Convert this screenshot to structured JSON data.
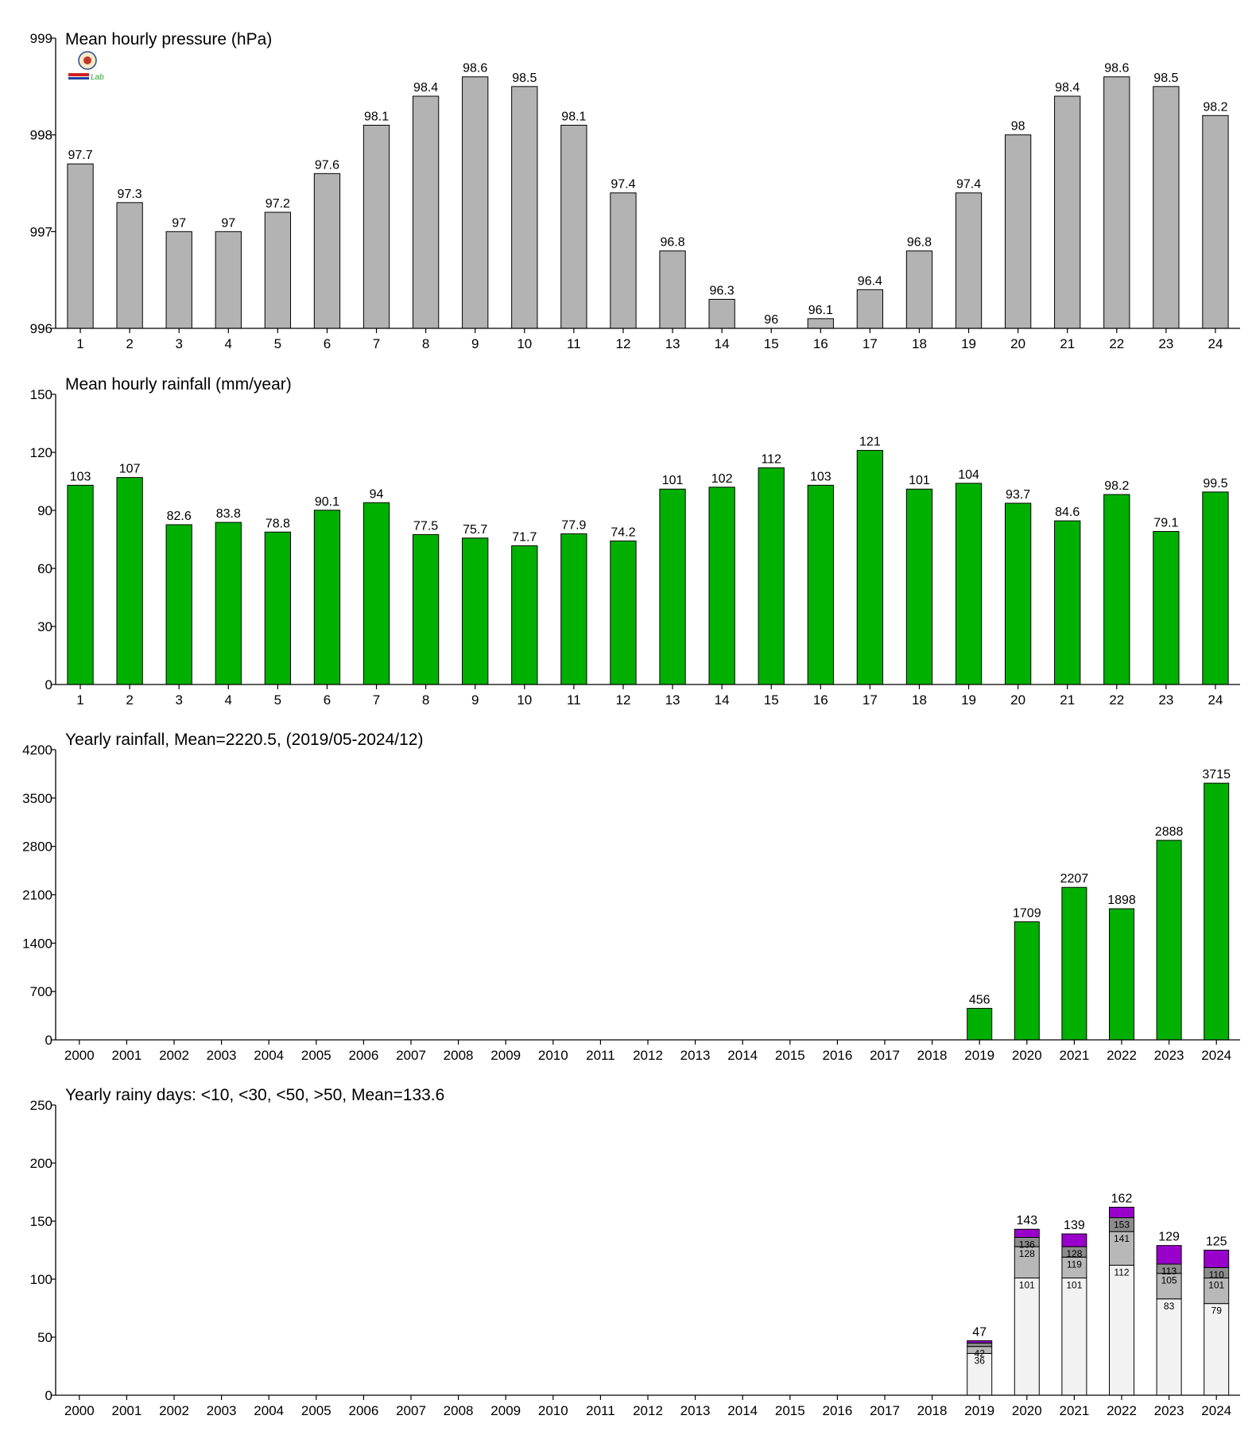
{
  "chart_data": [
    {
      "type": "bar",
      "title": "Mean hourly pressure (hPa)",
      "categories": [
        "1",
        "2",
        "3",
        "4",
        "5",
        "6",
        "7",
        "8",
        "9",
        "10",
        "11",
        "12",
        "13",
        "14",
        "15",
        "16",
        "17",
        "18",
        "19",
        "20",
        "21",
        "22",
        "23",
        "24"
      ],
      "values": [
        997.7,
        997.3,
        997.0,
        997.0,
        997.2,
        997.6,
        998.1,
        998.4,
        998.6,
        998.5,
        998.1,
        997.4,
        996.8,
        996.3,
        996.0,
        996.1,
        996.4,
        996.8,
        997.4,
        998.0,
        998.4,
        998.6,
        998.5,
        998.2
      ],
      "data_labels": [
        "97.7",
        "97.3",
        "97",
        "97",
        "97.2",
        "97.6",
        "98.1",
        "98.4",
        "98.6",
        "98.5",
        "98.1",
        "97.4",
        "96.8",
        "96.3",
        "96",
        "96.1",
        "96.4",
        "96.8",
        "97.4",
        "98",
        "98.4",
        "98.6",
        "98.5",
        "98.2"
      ],
      "ylim": [
        996,
        999
      ],
      "yticks": [
        996,
        997,
        998,
        999
      ],
      "ytick_labels": [
        "996",
        "997",
        "998",
        "999"
      ],
      "color": "#b3b3b3",
      "grid": false
    },
    {
      "type": "bar",
      "title": "Mean hourly rainfall (mm/year)",
      "categories": [
        "1",
        "2",
        "3",
        "4",
        "5",
        "6",
        "7",
        "8",
        "9",
        "10",
        "11",
        "12",
        "13",
        "14",
        "15",
        "16",
        "17",
        "18",
        "19",
        "20",
        "21",
        "22",
        "23",
        "24"
      ],
      "values": [
        103,
        107,
        82.6,
        83.8,
        78.8,
        90.1,
        94,
        77.5,
        75.7,
        71.7,
        77.9,
        74.2,
        101,
        102,
        112,
        103,
        121,
        101,
        104,
        93.7,
        84.6,
        98.2,
        79.1,
        99.5
      ],
      "data_labels": [
        "103",
        "107",
        "82.6",
        "83.8",
        "78.8",
        "90.1",
        "94",
        "77.5",
        "75.7",
        "71.7",
        "77.9",
        "74.2",
        "101",
        "102",
        "112",
        "103",
        "121",
        "101",
        "104",
        "93.7",
        "84.6",
        "98.2",
        "79.1",
        "99.5"
      ],
      "ylim": [
        0,
        150
      ],
      "yticks": [
        0,
        30,
        60,
        90,
        120,
        150
      ],
      "ytick_labels": [
        "0",
        "30",
        "60",
        "90",
        "120",
        "150"
      ],
      "color": "#00b000",
      "grid": false
    },
    {
      "type": "bar",
      "title": "Yearly rainfall, Mean=2220.5, (2019/05-2024/12)",
      "categories": [
        "2000",
        "2001",
        "2002",
        "2003",
        "2004",
        "2005",
        "2006",
        "2007",
        "2008",
        "2009",
        "2010",
        "2011",
        "2012",
        "2013",
        "2014",
        "2015",
        "2016",
        "2017",
        "2018",
        "2019",
        "2020",
        "2021",
        "2022",
        "2023",
        "2024"
      ],
      "values": [
        null,
        null,
        null,
        null,
        null,
        null,
        null,
        null,
        null,
        null,
        null,
        null,
        null,
        null,
        null,
        null,
        null,
        null,
        null,
        456,
        1709,
        2207,
        1898,
        2888,
        3715
      ],
      "data_labels": [
        "",
        "",
        "",
        "",
        "",
        "",
        "",
        "",
        "",
        "",
        "",
        "",
        "",
        "",
        "",
        "",
        "",
        "",
        "",
        "456",
        "1709",
        "2207",
        "1898",
        "2888",
        "3715"
      ],
      "ylim": [
        0,
        4200
      ],
      "yticks": [
        0,
        700,
        1400,
        2100,
        2800,
        3500,
        4200
      ],
      "ytick_labels": [
        "0",
        "700",
        "1400",
        "2100",
        "2800",
        "3500",
        "4200"
      ],
      "color": "#00b000",
      "grid": false
    },
    {
      "type": "bar",
      "stacked": true,
      "title": "Yearly rainy days: <10, <30, <50, >50, Mean=133.6",
      "categories": [
        "2000",
        "2001",
        "2002",
        "2003",
        "2004",
        "2005",
        "2006",
        "2007",
        "2008",
        "2009",
        "2010",
        "2011",
        "2012",
        "2013",
        "2014",
        "2015",
        "2016",
        "2017",
        "2018",
        "2019",
        "2020",
        "2021",
        "2022",
        "2023",
        "2024"
      ],
      "cumulative": [
        null,
        null,
        null,
        null,
        null,
        null,
        null,
        null,
        null,
        null,
        null,
        null,
        null,
        null,
        null,
        null,
        null,
        null,
        null,
        [
          36,
          42,
          45,
          47
        ],
        [
          101,
          128,
          136,
          143
        ],
        [
          101,
          119,
          128,
          139
        ],
        [
          112,
          141,
          153,
          162
        ],
        [
          83,
          105,
          113,
          129
        ],
        [
          79,
          101,
          110,
          125
        ]
      ],
      "segment_labels": [
        null,
        null,
        null,
        null,
        null,
        null,
        null,
        null,
        null,
        null,
        null,
        null,
        null,
        null,
        null,
        null,
        null,
        null,
        null,
        [
          "36",
          "42",
          ""
        ],
        [
          "101",
          "128",
          "136"
        ],
        [
          "101",
          "119",
          "128"
        ],
        [
          "112",
          "141",
          "153"
        ],
        [
          "83",
          "105",
          "113"
        ],
        [
          "79",
          "101",
          "110"
        ]
      ],
      "total_labels": [
        "",
        "",
        "",
        "",
        "",
        "",
        "",
        "",
        "",
        "",
        "",
        "",
        "",
        "",
        "",
        "",
        "",
        "",
        "",
        "47",
        "143",
        "139",
        "162",
        "129",
        "125"
      ],
      "segment_colors": [
        "#f2f2f2",
        "#b8b8b8",
        "#8c8c8c",
        "#9900cc"
      ],
      "ylim": [
        0,
        250
      ],
      "yticks": [
        0,
        50,
        100,
        150,
        200,
        250
      ],
      "ytick_labels": [
        "0",
        "50",
        "100",
        "150",
        "200",
        "250"
      ],
      "grid": false
    }
  ],
  "logo": {
    "text": "Lab"
  }
}
